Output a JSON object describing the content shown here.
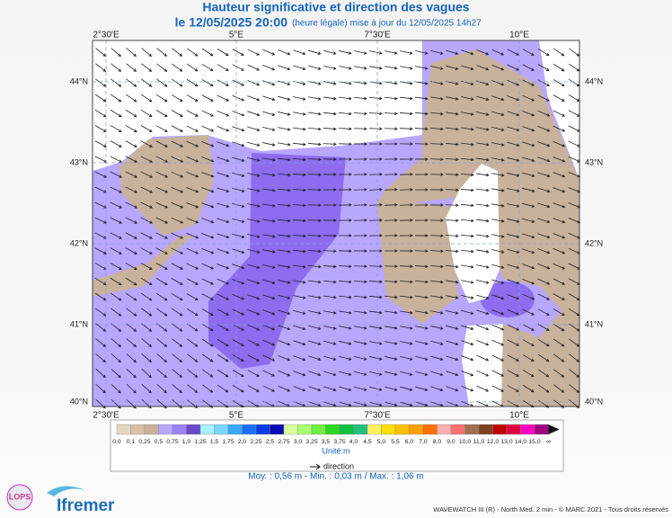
{
  "header": {
    "title": "Hauteur significative et direction des vagues",
    "date": "le 12/05/2025 20:00",
    "note": "(heure légale) mise à jour du 12/05/2025 14h27"
  },
  "map": {
    "lon_labels": [
      "2°30'E",
      "5°E",
      "7°30'E",
      "10°E"
    ],
    "lat_labels": [
      "44°N",
      "43°N",
      "42°N",
      "41°N",
      "40°N"
    ]
  },
  "legend": {
    "labels": [
      "0,0",
      "0,1",
      "0,25",
      "0,5",
      "0,75",
      "1,0",
      "1,25",
      "1,5",
      "1,75",
      "2,0",
      "2,25",
      "2,5",
      "2,75",
      "3,0",
      "3,25",
      "3,5",
      "3,75",
      "4,0",
      "4,5",
      "5,0",
      "5,5",
      "6,0",
      "7,0",
      "8,0",
      "9,0",
      "10,0",
      "11,0",
      "12,0",
      "13,0",
      "14,0",
      "15,0",
      "∞"
    ],
    "unit": "Unité:m",
    "direction": "direction",
    "stats": "Moy. : 0,56 m  -  Min. : 0,03 m / Max. : 1,06 m"
  },
  "logos": {
    "lops": "LOPS",
    "ifremer": "Ifremer"
  },
  "footer": "WAVEWATCH III (R) - North Med. 2 min - © MARC 2021 - Tous droits réservés"
}
